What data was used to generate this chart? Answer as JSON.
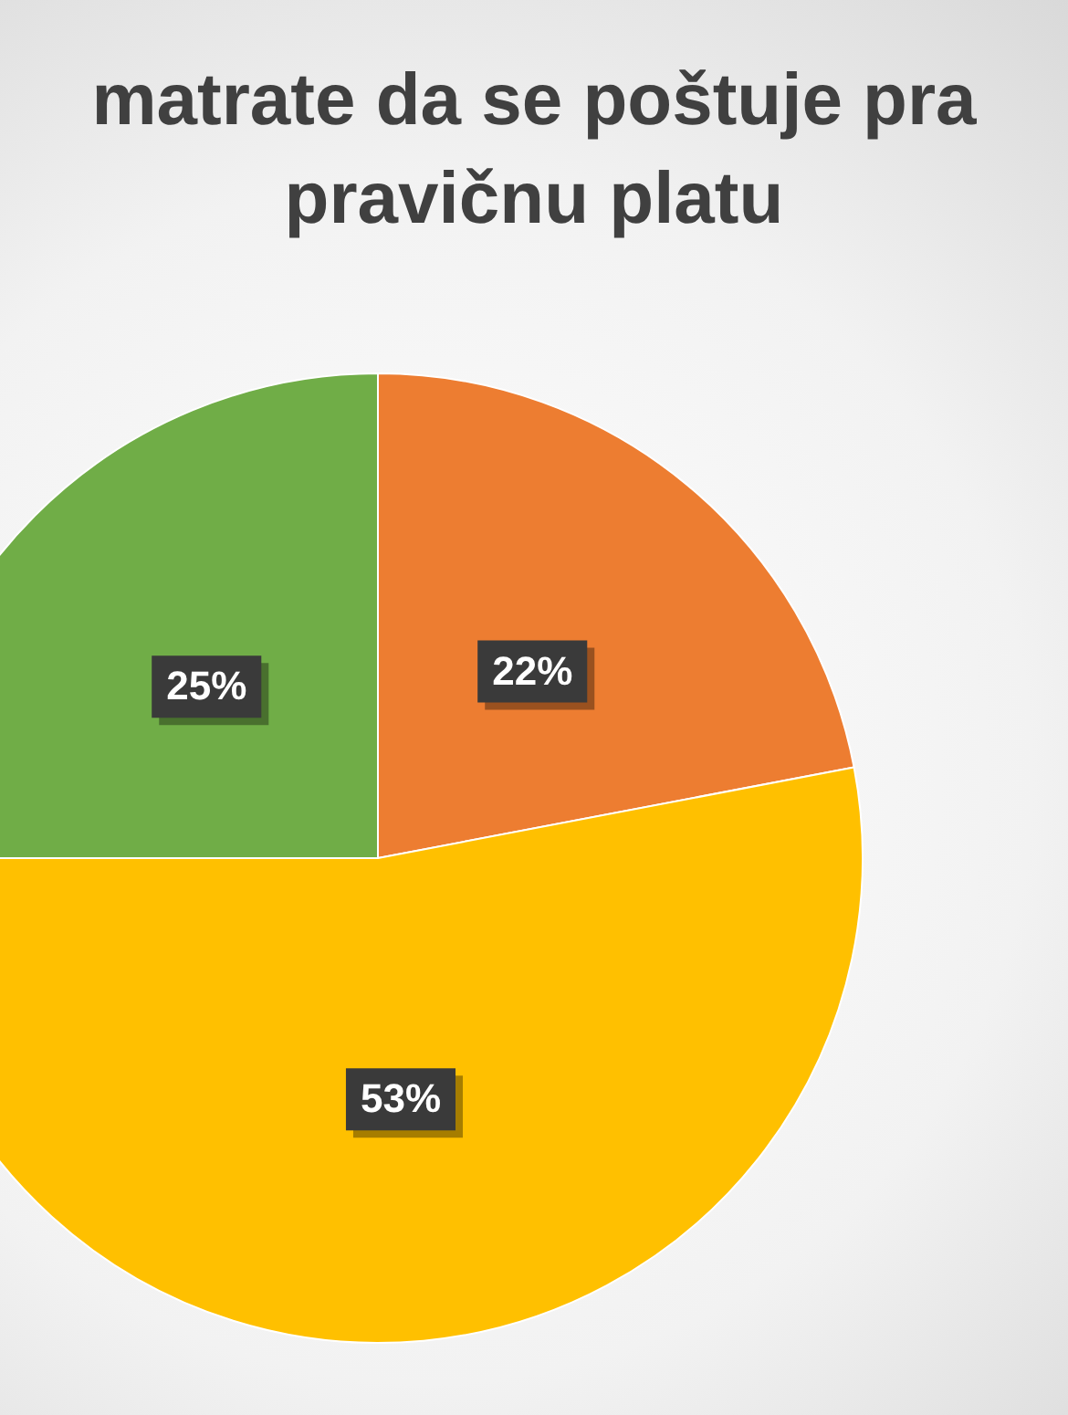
{
  "chart_data": {
    "type": "pie",
    "title": "matrate da se poštuje pra\npravičnu platu",
    "categories": [
      null,
      null,
      null
    ],
    "values": [
      22,
      53,
      25
    ],
    "colors": [
      "#ed7d31",
      "#ffc000",
      "#70ad47"
    ],
    "value_labels": [
      "22%",
      "53%",
      "25%"
    ],
    "legend": false
  }
}
